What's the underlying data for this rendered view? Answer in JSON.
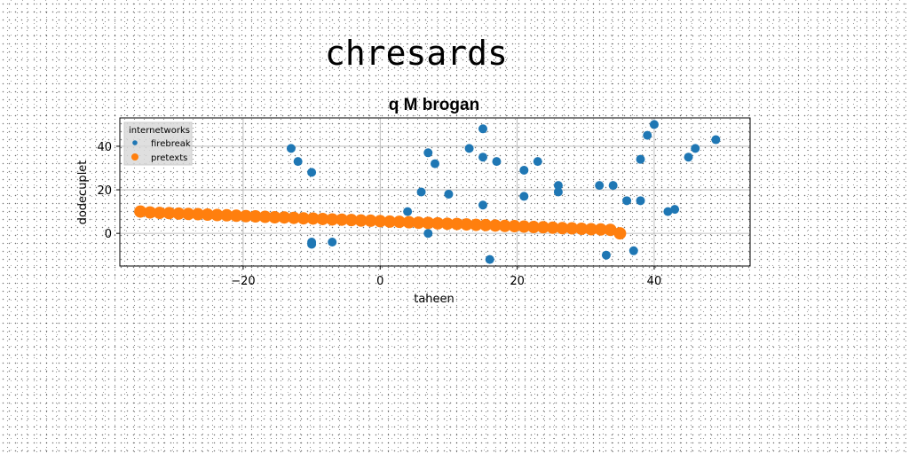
{
  "page_title": "chresards",
  "chart_data": {
    "type": "scatter",
    "title": "q M brogan",
    "xlabel": "taheen",
    "ylabel": "dodecuplet",
    "xlim": [
      -38,
      54
    ],
    "ylim": [
      -15,
      53
    ],
    "xticks": [
      -20,
      0,
      20,
      40
    ],
    "yticks": [
      0,
      20,
      40
    ],
    "grid": true,
    "legend": {
      "title": "internetworks",
      "placement": "top-left"
    },
    "series": [
      {
        "name": "firebreak",
        "color": "#1f77b4",
        "marker_size": 5,
        "points": [
          [
            -13,
            39
          ],
          [
            -12,
            33
          ],
          [
            -10,
            28
          ],
          [
            -10,
            -4
          ],
          [
            -10,
            -5
          ],
          [
            -7,
            -4
          ],
          [
            4,
            10
          ],
          [
            6,
            19
          ],
          [
            7,
            37
          ],
          [
            7,
            0
          ],
          [
            8,
            32
          ],
          [
            10,
            18
          ],
          [
            13,
            39
          ],
          [
            15,
            48
          ],
          [
            15,
            35
          ],
          [
            15,
            13
          ],
          [
            16,
            -12
          ],
          [
            17,
            33
          ],
          [
            21,
            29
          ],
          [
            21,
            17
          ],
          [
            23,
            33
          ],
          [
            26,
            22
          ],
          [
            26,
            19
          ],
          [
            32,
            22
          ],
          [
            33,
            -10
          ],
          [
            34,
            22
          ],
          [
            36,
            15
          ],
          [
            37,
            -8
          ],
          [
            38,
            34
          ],
          [
            38,
            15
          ],
          [
            39,
            45
          ],
          [
            40,
            50
          ],
          [
            42,
            10
          ],
          [
            43,
            11
          ],
          [
            45,
            35
          ],
          [
            46,
            39
          ],
          [
            49,
            43
          ]
        ]
      },
      {
        "name": "pretexts",
        "color": "#ff7f0e",
        "marker_size": 7,
        "points": [
          [
            -35,
            10
          ],
          [
            -33.6,
            9.6
          ],
          [
            -32.2,
            9.4
          ],
          [
            -30.8,
            9.3
          ],
          [
            -29.4,
            9.1
          ],
          [
            -28,
            8.9
          ],
          [
            -26.6,
            8.8
          ],
          [
            -25.2,
            8.6
          ],
          [
            -23.8,
            8.4
          ],
          [
            -22.4,
            8.3
          ],
          [
            -21,
            8.1
          ],
          [
            -19.6,
            7.9
          ],
          [
            -18.2,
            7.8
          ],
          [
            -16.8,
            7.6
          ],
          [
            -15.4,
            7.4
          ],
          [
            -14,
            7.3
          ],
          [
            -12.6,
            7.1
          ],
          [
            -11.2,
            6.9
          ],
          [
            -9.8,
            6.8
          ],
          [
            -8.4,
            6.6
          ],
          [
            -7,
            6.4
          ],
          [
            -5.6,
            6.3
          ],
          [
            -4.2,
            6.1
          ],
          [
            -2.8,
            5.9
          ],
          [
            -1.4,
            5.8
          ],
          [
            0,
            5.6
          ],
          [
            1.4,
            5.4
          ],
          [
            2.8,
            5.3
          ],
          [
            4.2,
            5.1
          ],
          [
            5.6,
            4.9
          ],
          [
            7,
            4.8
          ],
          [
            8.4,
            4.6
          ],
          [
            9.8,
            4.4
          ],
          [
            11.2,
            4.3
          ],
          [
            12.6,
            4.1
          ],
          [
            14,
            3.9
          ],
          [
            15.4,
            3.8
          ],
          [
            16.8,
            3.6
          ],
          [
            18.2,
            3.4
          ],
          [
            19.6,
            3.3
          ],
          [
            21,
            3.1
          ],
          [
            22.4,
            2.9
          ],
          [
            23.8,
            2.8
          ],
          [
            25.2,
            2.6
          ],
          [
            26.6,
            2.4
          ],
          [
            28,
            2.3
          ],
          [
            29.4,
            2.1
          ],
          [
            30.8,
            1.9
          ],
          [
            32.2,
            1.8
          ],
          [
            33.6,
            1.6
          ],
          [
            35,
            0
          ]
        ]
      }
    ]
  }
}
